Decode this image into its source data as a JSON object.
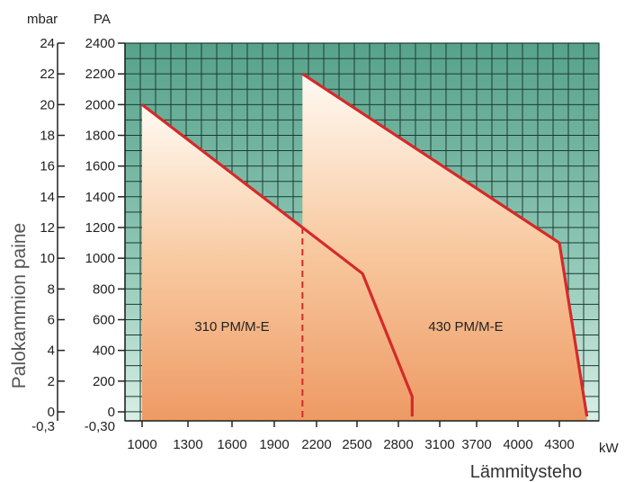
{
  "chart_data": {
    "type": "area",
    "title": "",
    "xlabel": "Lämmitysteho",
    "x_unit": "kW",
    "ylabel": "Palokammion paine",
    "y_unit_left": "mbar",
    "y_unit_right": "PA",
    "x_ticks": [
      "1000",
      "1300",
      "1600",
      "1900",
      "2200",
      "2500",
      "2800",
      "3100",
      "3700",
      "4000",
      "4300"
    ],
    "y_ticks_mbar": [
      "-0,3",
      "0",
      "2",
      "4",
      "6",
      "8",
      "10",
      "12",
      "14",
      "16",
      "18",
      "20",
      "22",
      "24"
    ],
    "y_ticks_pa": [
      "-0,30",
      "0",
      "200",
      "400",
      "600",
      "800",
      "1000",
      "1200",
      "1400",
      "1600",
      "1800",
      "2000",
      "2200",
      "2400"
    ],
    "grid": true,
    "series": [
      {
        "name": "310 PM/M-E",
        "points": [
          [
            1000,
            2000
          ],
          [
            2100,
            1200
          ],
          [
            2540,
            900
          ],
          [
            2900,
            100
          ],
          [
            2900,
            -30
          ]
        ]
      },
      {
        "name": "430 PM/M-E",
        "points": [
          [
            2100,
            2200
          ],
          [
            4300,
            1100
          ],
          [
            4500,
            -30
          ]
        ]
      }
    ],
    "boundary_dashed_x": 2100,
    "colors": {
      "line": "#d42a2a",
      "grid_bg": "#5ea890",
      "fill_top": "#fff8ef",
      "fill_bottom": "#f0a06c"
    }
  }
}
